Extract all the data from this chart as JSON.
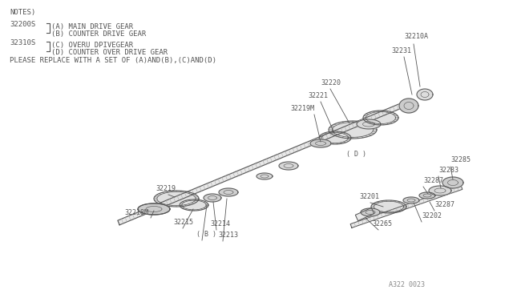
{
  "bg_color": "#ffffff",
  "line_color": "#555555",
  "text_color": "#555555",
  "fs_notes": 6.5,
  "fs_label": 6.0,
  "notes": "NOTES)",
  "line1_num": "32200S",
  "line1a": "(A) MAIN DRIVE GEAR",
  "line1b": "(B) COUNTER DRIVE GEAR",
  "line2_num": "32310S",
  "line2a": "(C) OVERU DPIVEGEAR",
  "line2b": "(D) COUNTER OVER DRIVE GEAR",
  "replace_text": "PLEASE REPLACE WITH A SET OF (A)AND(B),(C)AND(D)",
  "footer": "A322 0023"
}
